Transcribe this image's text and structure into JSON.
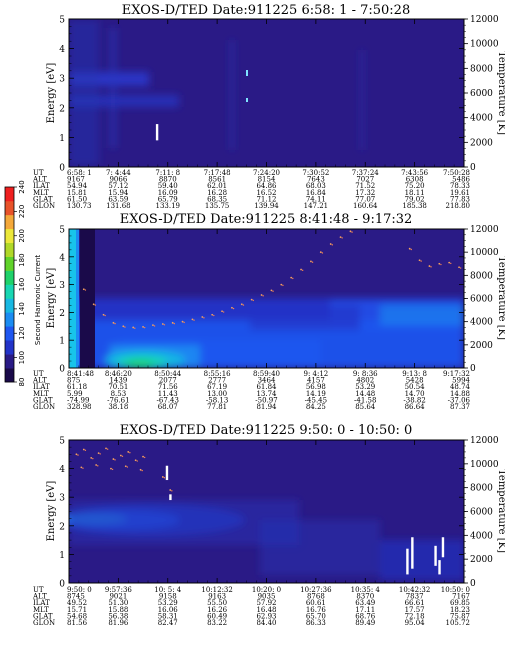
{
  "colors": {
    "background": "#2a1a86",
    "frame": "#000000",
    "colormap": [
      "#1a0a4a",
      "#2a1b86",
      "#2233c8",
      "#1f57f0",
      "#1b8cf2",
      "#18b8e2",
      "#18d6b2",
      "#1fd26a",
      "#60d32a",
      "#b0d828",
      "#ece83a",
      "#f4a83a",
      "#e8532a",
      "#ef2020"
    ]
  },
  "colorbar": {
    "label": "Second Harmonic Current",
    "ticks": [
      "80",
      "100",
      "120",
      "140",
      "160",
      "180",
      "200",
      "220",
      "240"
    ]
  },
  "chart_data": [
    {
      "type": "heatmap",
      "title": "EXOS-D/TED   Date:911225   6:58: 1 - 7:50:28",
      "ylabel": "Energy [eV]",
      "y2label": "Temperature [K]",
      "ylim": [
        0,
        5
      ],
      "yticks": [
        "0",
        "1",
        "2",
        "3",
        "4",
        "5"
      ],
      "y2lim": [
        0,
        12000
      ],
      "y2ticks": [
        "0",
        "2000",
        "4000",
        "6000",
        "8000",
        "10000",
        "12000"
      ],
      "xlim": [
        0,
        8
      ],
      "rows": [
        {
          "label": "UT",
          "values": [
            "6:58: 1",
            "7: 4:44",
            "7:11: 8",
            "7:17:48",
            "7:24:20",
            "7:30:52",
            "7:37:24",
            "7:43:56",
            "7:50:28"
          ]
        },
        {
          "label": "ALT",
          "values": [
            "9167",
            "9066",
            "8870",
            "8561",
            "8154",
            "7643",
            "7027",
            "6308",
            "5486"
          ]
        },
        {
          "label": "ILAT",
          "values": [
            "54.94",
            "57.12",
            "59.40",
            "62.01",
            "64.86",
            "68.03",
            "71.52",
            "75.20",
            "78.33"
          ]
        },
        {
          "label": "MLT",
          "values": [
            "15.81",
            "15.94",
            "16.09",
            "16.28",
            "16.52",
            "16.84",
            "17.32",
            "18.11",
            "19.61"
          ]
        },
        {
          "label": "GLAT",
          "values": [
            "61.50",
            "63.59",
            "65.79",
            "68.35",
            "71.12",
            "74.11",
            "77.07",
            "79.02",
            "77.83"
          ]
        },
        {
          "label": "GLON",
          "values": [
            "130.73",
            "131.68",
            "133.19",
            "135.75",
            "139.94",
            "147.21",
            "160.64",
            "185.38",
            "218.80"
          ]
        }
      ],
      "temperature_points": [],
      "white_marks": [
        {
          "x": 1.78,
          "y0": 0.9,
          "y1": 1.45
        }
      ]
    },
    {
      "type": "heatmap",
      "title": "EXOS-D/TED   Date:911225   8:41:48 - 9:17:32",
      "ylabel": "Energy [eV]",
      "y2label": "Temperature [K]",
      "ylim": [
        0,
        5
      ],
      "yticks": [
        "0",
        "1",
        "2",
        "3",
        "4",
        "5"
      ],
      "y2lim": [
        0,
        12000
      ],
      "y2ticks": [
        "0",
        "2000",
        "4000",
        "6000",
        "8000",
        "10000",
        "12000"
      ],
      "xlim": [
        0,
        8
      ],
      "rows": [
        {
          "label": "UT",
          "values": [
            "8:41:48",
            "8:46:20",
            "8:50:44",
            "8:55:16",
            "8:59:40",
            "9: 4:12",
            "9: 8:36",
            "9:13: 8",
            "9:17:32"
          ]
        },
        {
          "label": "ALT",
          "values": [
            "875",
            "1439",
            "2077",
            "2777",
            "3464",
            "4157",
            "4802",
            "5428",
            "5994"
          ]
        },
        {
          "label": "ILAT",
          "values": [
            "61.18",
            "70.51",
            "71.56",
            "67.19",
            "61.84",
            "56.98",
            "53.29",
            "50.54",
            "48.74"
          ]
        },
        {
          "label": "MLT",
          "values": [
            "5.99",
            "8.53",
            "11.43",
            "13.00",
            "13.74",
            "14.19",
            "14.48",
            "14.70",
            "14.88"
          ]
        },
        {
          "label": "GLAT",
          "values": [
            "-74.99",
            "-76.61",
            "-67.43",
            "-58.13",
            "-50.97",
            "-45.45",
            "-41.58",
            "-38.82",
            "-37.06"
          ]
        },
        {
          "label": "GLON",
          "values": [
            "328.98",
            "38.18",
            "68.07",
            "77.81",
            "81.94",
            "84.25",
            "85.64",
            "86.64",
            "87.37"
          ]
        }
      ],
      "temperature_points": [
        {
          "x": 0.3,
          "t": 6800
        },
        {
          "x": 0.5,
          "t": 5500
        },
        {
          "x": 0.7,
          "t": 4600
        },
        {
          "x": 0.9,
          "t": 3900
        },
        {
          "x": 1.1,
          "t": 3600
        },
        {
          "x": 1.3,
          "t": 3500
        },
        {
          "x": 1.5,
          "t": 3550
        },
        {
          "x": 1.7,
          "t": 3700
        },
        {
          "x": 1.9,
          "t": 3800
        },
        {
          "x": 2.1,
          "t": 3900
        },
        {
          "x": 2.3,
          "t": 4000
        },
        {
          "x": 2.5,
          "t": 4200
        },
        {
          "x": 2.7,
          "t": 4400
        },
        {
          "x": 2.9,
          "t": 4600
        },
        {
          "x": 3.1,
          "t": 4900
        },
        {
          "x": 3.3,
          "t": 5200
        },
        {
          "x": 3.5,
          "t": 5500
        },
        {
          "x": 3.7,
          "t": 5900
        },
        {
          "x": 3.9,
          "t": 6300
        },
        {
          "x": 4.1,
          "t": 6700
        },
        {
          "x": 4.3,
          "t": 7200
        },
        {
          "x": 4.5,
          "t": 7800
        },
        {
          "x": 4.7,
          "t": 8500
        },
        {
          "x": 4.9,
          "t": 9200
        },
        {
          "x": 5.1,
          "t": 10000
        },
        {
          "x": 5.3,
          "t": 10700
        },
        {
          "x": 5.5,
          "t": 11300
        },
        {
          "x": 5.7,
          "t": 11800
        },
        {
          "x": 6.9,
          "t": 10300
        },
        {
          "x": 7.1,
          "t": 9300
        },
        {
          "x": 7.3,
          "t": 8800
        },
        {
          "x": 7.5,
          "t": 9000
        },
        {
          "x": 7.7,
          "t": 9100
        },
        {
          "x": 7.9,
          "t": 8700
        }
      ],
      "white_marks": []
    },
    {
      "type": "heatmap",
      "title": "EXOS-D/TED   Date:911225   9:50: 0 - 10:50: 0",
      "ylabel": "Energy [eV]",
      "y2label": "Temperature [K]",
      "ylim": [
        0,
        5
      ],
      "yticks": [
        "0",
        "1",
        "2",
        "3",
        "4",
        "5"
      ],
      "y2lim": [
        0,
        12000
      ],
      "y2ticks": [
        "0",
        "2000",
        "4000",
        "6000",
        "8000",
        "10000",
        "12000"
      ],
      "xlim": [
        0,
        8
      ],
      "rows": [
        {
          "label": "UT",
          "values": [
            "9:50: 0",
            "9:57:36",
            "10: 5: 4",
            "10:12:32",
            "10:20: 0",
            "10:27:36",
            "10:35: 4",
            "10:42:32",
            "10:50: 0"
          ]
        },
        {
          "label": "ALT",
          "values": [
            "8745",
            "9021",
            "9158",
            "9163",
            "9035",
            "8768",
            "8370",
            "7837",
            "7167"
          ]
        },
        {
          "label": "ILAT",
          "values": [
            "49.52",
            "51.30",
            "53.29",
            "55.50",
            "57.92",
            "60.61",
            "63.49",
            "66.61",
            "69.85"
          ]
        },
        {
          "label": "MLT",
          "values": [
            "15.71",
            "15.88",
            "16.06",
            "16.26",
            "16.48",
            "16.76",
            "17.11",
            "17.57",
            "18.23"
          ]
        },
        {
          "label": "GLAT",
          "values": [
            "54.68",
            "56.38",
            "58.31",
            "60.49",
            "62.93",
            "65.70",
            "68.76",
            "72.18",
            "75.87"
          ]
        },
        {
          "label": "GLON",
          "values": [
            "81.56",
            "81.96",
            "82.47",
            "83.22",
            "84.40",
            "86.33",
            "89.49",
            "95.04",
            "105.72"
          ]
        }
      ],
      "temperature_points": [
        {
          "x": 0.15,
          "t": 10800
        },
        {
          "x": 0.3,
          "t": 11200
        },
        {
          "x": 0.45,
          "t": 10500
        },
        {
          "x": 0.6,
          "t": 10900
        },
        {
          "x": 0.75,
          "t": 11300
        },
        {
          "x": 0.9,
          "t": 10400
        },
        {
          "x": 1.05,
          "t": 10700
        },
        {
          "x": 1.2,
          "t": 11000
        },
        {
          "x": 1.35,
          "t": 10300
        },
        {
          "x": 1.5,
          "t": 10600
        },
        {
          "x": 0.25,
          "t": 9700
        },
        {
          "x": 0.55,
          "t": 9900
        },
        {
          "x": 0.85,
          "t": 9600
        },
        {
          "x": 1.15,
          "t": 9800
        },
        {
          "x": 1.45,
          "t": 9500
        },
        {
          "x": 1.9,
          "t": 8900
        },
        {
          "x": 2.05,
          "t": 7800
        }
      ],
      "white_marks": [
        {
          "x": 1.98,
          "y0": 3.6,
          "y1": 4.1
        },
        {
          "x": 2.05,
          "y0": 2.9,
          "y1": 3.1
        },
        {
          "x": 6.85,
          "y0": 0.3,
          "y1": 1.2
        },
        {
          "x": 6.95,
          "y0": 0.5,
          "y1": 1.6
        },
        {
          "x": 7.42,
          "y0": 0.6,
          "y1": 1.3
        },
        {
          "x": 7.5,
          "y0": 0.3,
          "y1": 0.8
        },
        {
          "x": 7.57,
          "y0": 0.9,
          "y1": 1.6
        }
      ]
    }
  ]
}
